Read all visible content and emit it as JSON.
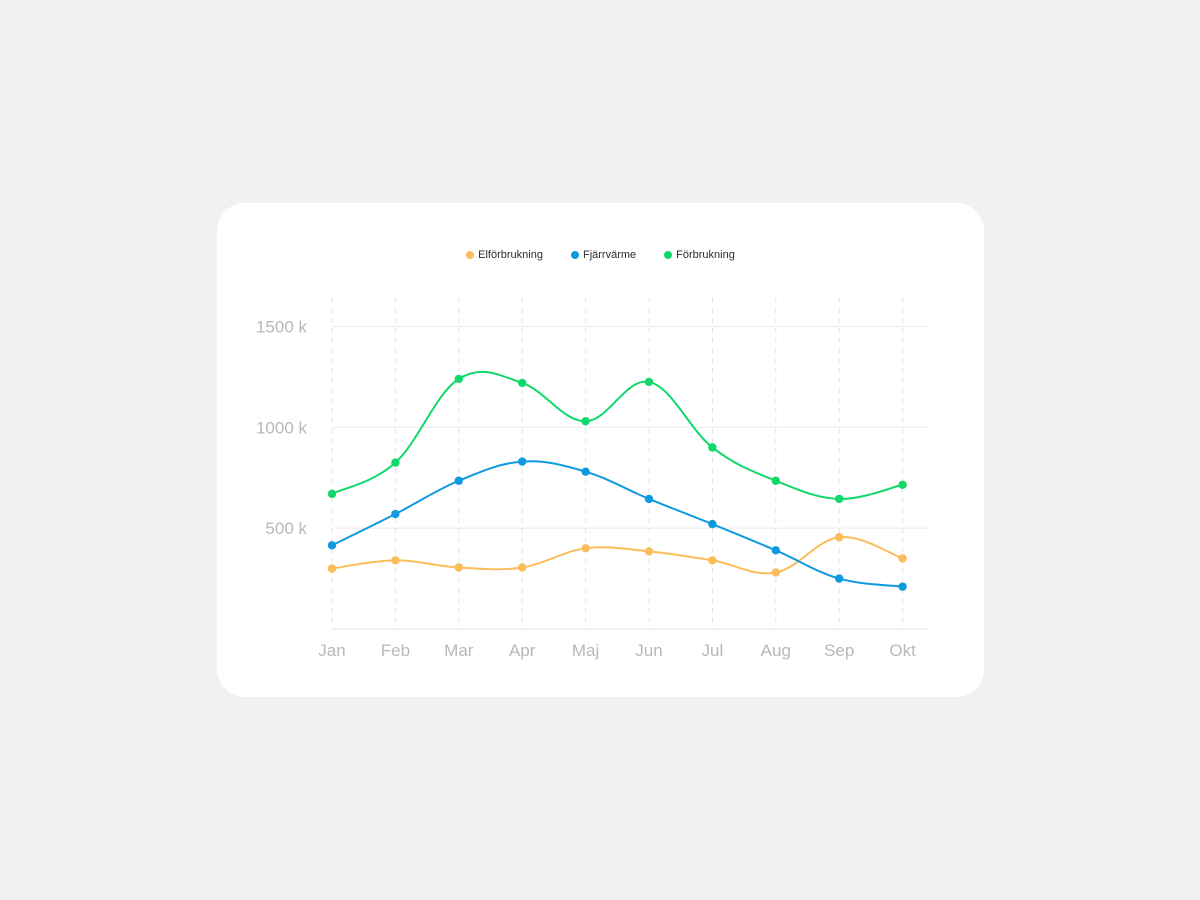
{
  "chart_data": {
    "type": "line",
    "title": "",
    "xlabel": "",
    "ylabel": "",
    "categories": [
      "Jan",
      "Feb",
      "Mar",
      "Apr",
      "Maj",
      "Jun",
      "Jul",
      "Aug",
      "Sep",
      "Okt"
    ],
    "y_ticks": [
      "500 k",
      "1000 k",
      "1500 k"
    ],
    "y_tick_values": [
      500,
      1000,
      1500
    ],
    "ylim": [
      0,
      1500
    ],
    "smooth": true,
    "grid": {
      "horizontal": true,
      "vertical_dashed": true
    },
    "legend_position": "top-center",
    "series": [
      {
        "name": "Elförbrukning",
        "color": "#fbbd5a",
        "values": [
          300,
          340,
          305,
          305,
          400,
          385,
          340,
          280,
          455,
          350
        ]
      },
      {
        "name": "Fjärrvärme",
        "color": "#0f9ae0",
        "values": [
          415,
          570,
          735,
          830,
          780,
          645,
          520,
          390,
          250,
          210
        ]
      },
      {
        "name": "Förbrukning",
        "color": "#11d86b",
        "values": [
          670,
          825,
          1240,
          1220,
          1030,
          1225,
          900,
          735,
          645,
          715
        ]
      }
    ]
  }
}
